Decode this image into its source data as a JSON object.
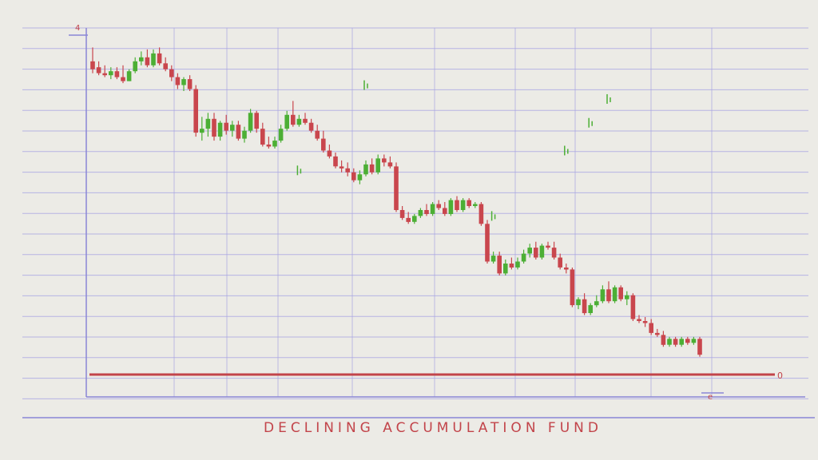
{
  "chart_data": {
    "type": "candlestick",
    "title": "DECLINING ACCUMULATION FUND",
    "labels": {
      "top_left": "4",
      "right_end": "0",
      "bottom_right": "e"
    },
    "ylim": [
      0,
      17
    ],
    "grid": true,
    "colors": {
      "bear": "#c9464d",
      "bull": "#4caf35",
      "grid": "#a9a6e3",
      "axis": "#8a86d6",
      "baseline": "#c2444a",
      "title": "#c2444a"
    },
    "reference_line": 0,
    "series": [
      {
        "candles": [
          [
            15.8,
            16.5,
            15.2,
            15.4
          ],
          [
            15.5,
            15.8,
            15.1,
            15.2
          ],
          [
            15.2,
            15.6,
            15.0,
            15.1
          ],
          [
            15.1,
            15.5,
            14.9,
            15.3
          ],
          [
            15.3,
            15.5,
            14.9,
            15.0
          ],
          [
            15.0,
            15.6,
            14.7,
            14.8
          ],
          [
            14.8,
            15.4,
            14.8,
            15.3
          ],
          [
            15.3,
            16.0,
            15.2,
            15.8
          ],
          [
            15.8,
            16.3,
            15.6,
            16.0
          ],
          [
            16.0,
            16.4,
            15.5,
            15.6
          ],
          [
            15.6,
            16.4,
            15.5,
            16.2
          ],
          [
            16.2,
            16.5,
            15.6,
            15.7
          ],
          [
            15.7,
            16.0,
            15.3,
            15.4
          ],
          [
            15.4,
            15.6,
            14.8,
            15.0
          ],
          [
            15.0,
            15.2,
            14.4,
            14.6
          ],
          [
            14.6,
            15.0,
            14.3,
            14.9
          ],
          [
            14.9,
            15.1,
            14.3,
            14.4
          ],
          [
            14.4,
            14.6,
            12.0,
            12.2
          ],
          [
            12.2,
            13.0,
            11.8,
            12.4
          ],
          [
            12.4,
            13.2,
            12.0,
            12.9
          ],
          [
            12.9,
            13.2,
            11.8,
            12.0
          ],
          [
            12.0,
            12.8,
            11.8,
            12.7
          ],
          [
            12.7,
            13.1,
            12.1,
            12.3
          ],
          [
            12.3,
            12.8,
            12.0,
            12.6
          ],
          [
            12.6,
            12.8,
            11.8,
            11.9
          ],
          [
            11.9,
            12.5,
            11.7,
            12.3
          ],
          [
            12.3,
            13.4,
            12.2,
            13.2
          ],
          [
            13.2,
            13.3,
            12.2,
            12.4
          ],
          [
            12.4,
            12.7,
            11.5,
            11.6
          ],
          [
            11.6,
            12.0,
            11.4,
            11.5
          ],
          [
            11.5,
            12.0,
            11.4,
            11.8
          ],
          [
            11.8,
            12.6,
            11.7,
            12.4
          ],
          [
            12.4,
            13.3,
            12.3,
            13.1
          ],
          [
            13.1,
            13.8,
            12.5,
            12.6
          ],
          [
            12.6,
            13.1,
            12.5,
            12.9
          ],
          [
            12.9,
            13.2,
            12.6,
            12.7
          ],
          [
            12.7,
            12.9,
            12.2,
            12.3
          ],
          [
            12.3,
            12.6,
            11.8,
            11.9
          ],
          [
            11.9,
            12.3,
            11.2,
            11.3
          ],
          [
            11.3,
            11.6,
            10.9,
            11.0
          ],
          [
            11.0,
            11.2,
            10.4,
            10.5
          ],
          [
            10.5,
            10.8,
            10.2,
            10.4
          ],
          [
            10.4,
            10.7,
            10.0,
            10.2
          ],
          [
            10.2,
            10.4,
            9.7,
            9.8
          ],
          [
            9.8,
            10.3,
            9.6,
            10.1
          ],
          [
            10.1,
            10.8,
            10.0,
            10.6
          ],
          [
            10.6,
            10.9,
            10.1,
            10.2
          ],
          [
            10.2,
            11.1,
            10.1,
            10.9
          ],
          [
            10.9,
            11.1,
            10.5,
            10.7
          ],
          [
            10.7,
            11.0,
            10.4,
            10.5
          ],
          [
            10.5,
            10.7,
            8.2,
            8.3
          ],
          [
            8.3,
            8.5,
            7.8,
            7.9
          ],
          [
            7.9,
            8.2,
            7.6,
            7.7
          ],
          [
            7.7,
            8.1,
            7.6,
            8.0
          ],
          [
            8.0,
            8.4,
            7.9,
            8.3
          ],
          [
            8.3,
            8.6,
            8.0,
            8.1
          ],
          [
            8.1,
            8.7,
            8.0,
            8.6
          ],
          [
            8.6,
            8.8,
            8.3,
            8.4
          ],
          [
            8.4,
            8.7,
            8.0,
            8.1
          ],
          [
            8.1,
            8.9,
            8.0,
            8.8
          ],
          [
            8.8,
            9.0,
            8.2,
            8.3
          ],
          [
            8.3,
            8.9,
            8.2,
            8.8
          ],
          [
            8.8,
            8.9,
            8.4,
            8.5
          ],
          [
            8.5,
            8.7,
            8.4,
            8.6
          ],
          [
            8.6,
            8.7,
            7.5,
            7.6
          ],
          [
            7.6,
            7.8,
            5.6,
            5.7
          ],
          [
            5.7,
            6.2,
            5.6,
            6.0
          ],
          [
            6.0,
            6.2,
            5.0,
            5.1
          ],
          [
            5.1,
            5.8,
            5.0,
            5.6
          ],
          [
            5.6,
            5.9,
            5.3,
            5.4
          ],
          [
            5.4,
            5.9,
            5.3,
            5.7
          ],
          [
            5.7,
            6.3,
            5.6,
            6.1
          ],
          [
            6.1,
            6.6,
            5.9,
            6.4
          ],
          [
            6.4,
            6.7,
            5.8,
            5.9
          ],
          [
            5.9,
            6.6,
            5.8,
            6.5
          ],
          [
            6.5,
            6.7,
            6.3,
            6.4
          ],
          [
            6.4,
            6.7,
            5.8,
            5.9
          ],
          [
            5.9,
            6.1,
            5.3,
            5.4
          ],
          [
            5.4,
            5.6,
            5.1,
            5.3
          ],
          [
            5.3,
            5.4,
            3.4,
            3.5
          ],
          [
            3.5,
            3.9,
            3.3,
            3.8
          ],
          [
            3.8,
            4.1,
            3.0,
            3.1
          ],
          [
            3.1,
            3.6,
            3.0,
            3.5
          ],
          [
            3.5,
            4.0,
            3.4,
            3.7
          ],
          [
            3.7,
            4.5,
            3.6,
            4.3
          ],
          [
            4.3,
            4.7,
            3.6,
            3.7
          ],
          [
            3.7,
            4.5,
            3.6,
            4.4
          ],
          [
            4.4,
            4.5,
            3.7,
            3.8
          ],
          [
            3.8,
            4.2,
            3.5,
            4.0
          ],
          [
            4.0,
            4.1,
            2.7,
            2.8
          ],
          [
            2.8,
            3.0,
            2.6,
            2.7
          ],
          [
            2.7,
            2.9,
            2.4,
            2.6
          ],
          [
            2.6,
            2.8,
            2.0,
            2.1
          ],
          [
            2.1,
            2.3,
            1.9,
            2.0
          ],
          [
            2.0,
            2.2,
            1.4,
            1.5
          ],
          [
            1.5,
            1.9,
            1.4,
            1.8
          ],
          [
            1.8,
            1.9,
            1.4,
            1.5
          ],
          [
            1.5,
            1.9,
            1.4,
            1.8
          ],
          [
            1.8,
            1.9,
            1.5,
            1.6
          ],
          [
            1.6,
            1.9,
            1.5,
            1.8
          ],
          [
            1.8,
            1.9,
            0.9,
            1.0
          ]
        ]
      },
      {
        "name": "outliers",
        "points": [
          {
            "x": 34,
            "y": 10.3
          },
          {
            "x": 45,
            "y": 14.6
          },
          {
            "x": 66,
            "y": 8.0
          },
          {
            "x": 78,
            "y": 11.3
          },
          {
            "x": 82,
            "y": 12.7
          },
          {
            "x": 85,
            "y": 13.9
          }
        ]
      }
    ]
  }
}
